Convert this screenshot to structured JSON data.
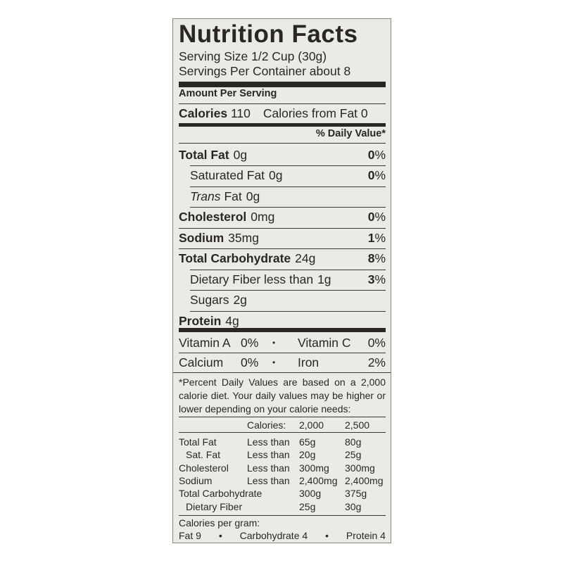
{
  "title": "Nutrition Facts",
  "serving_size": "Serving Size 1/2 Cup (30g)",
  "servings_per_container": "Servings Per Container about 8",
  "amount_per_serving": "Amount Per Serving",
  "calories": {
    "label": "Calories",
    "value": "110",
    "from_fat": "Calories from Fat 0"
  },
  "daily_value_header": "% Daily Value*",
  "nutrients": [
    {
      "name": "Total Fat",
      "amount": "0g",
      "dv": "0",
      "bold": true,
      "indent": false
    },
    {
      "name": "Saturated Fat",
      "amount": "0g",
      "dv": "0",
      "bold": false,
      "indent": true
    },
    {
      "name": "Trans",
      "name_suffix": "Fat",
      "amount": "0g",
      "dv": "",
      "bold": false,
      "indent": true
    },
    {
      "name": "Cholesterol",
      "amount": "0mg",
      "dv": "0",
      "bold": true,
      "indent": false
    },
    {
      "name": "Sodium",
      "amount": "35mg",
      "dv": "1",
      "bold": true,
      "indent": false
    },
    {
      "name": "Total Carbohydrate",
      "amount": "24g",
      "dv": "8",
      "bold": true,
      "indent": false
    },
    {
      "name": "Dietary Fiber less than",
      "amount": "1g",
      "dv": "3",
      "bold": false,
      "indent": true
    },
    {
      "name": "Sugars",
      "amount": "2g",
      "dv": "",
      "bold": false,
      "indent": true
    },
    {
      "name": "Protein",
      "amount": "4g",
      "dv": "",
      "bold": true,
      "indent": false
    }
  ],
  "percent_sign": "%",
  "bullet": "•",
  "vitamins": [
    {
      "left": "Vitamin A",
      "left_value": "0%",
      "right": "Vitamin C",
      "right_value": "0%"
    },
    {
      "left": "Calcium",
      "left_value": "0%",
      "right": "Iron",
      "right_value": "2%"
    }
  ],
  "footnote": "*Percent Daily Values are based on a 2,000 calorie diet. Your daily values may be higher or lower depending on your calorie needs:",
  "dv_table": {
    "header": [
      "",
      "Calories:",
      "2,000",
      "2,500"
    ],
    "rows": [
      [
        "Total Fat",
        "Less than",
        "65g",
        "80g"
      ],
      [
        "Sat. Fat",
        "Less than",
        "20g",
        "25g"
      ],
      [
        "Cholesterol",
        "Less than",
        "300mg",
        "300mg"
      ],
      [
        "Sodium",
        "Less than",
        "2,400mg",
        "2,400mg"
      ],
      [
        "Total Carbohydrate",
        "",
        "300g",
        "375g"
      ],
      [
        "Dietary Fiber",
        "",
        "25g",
        "30g"
      ]
    ]
  },
  "calories_per_gram": {
    "label": "Calories per gram:",
    "fat": "Fat 9",
    "carb": "Carbohydrate 4",
    "protein": "Protein 4"
  }
}
